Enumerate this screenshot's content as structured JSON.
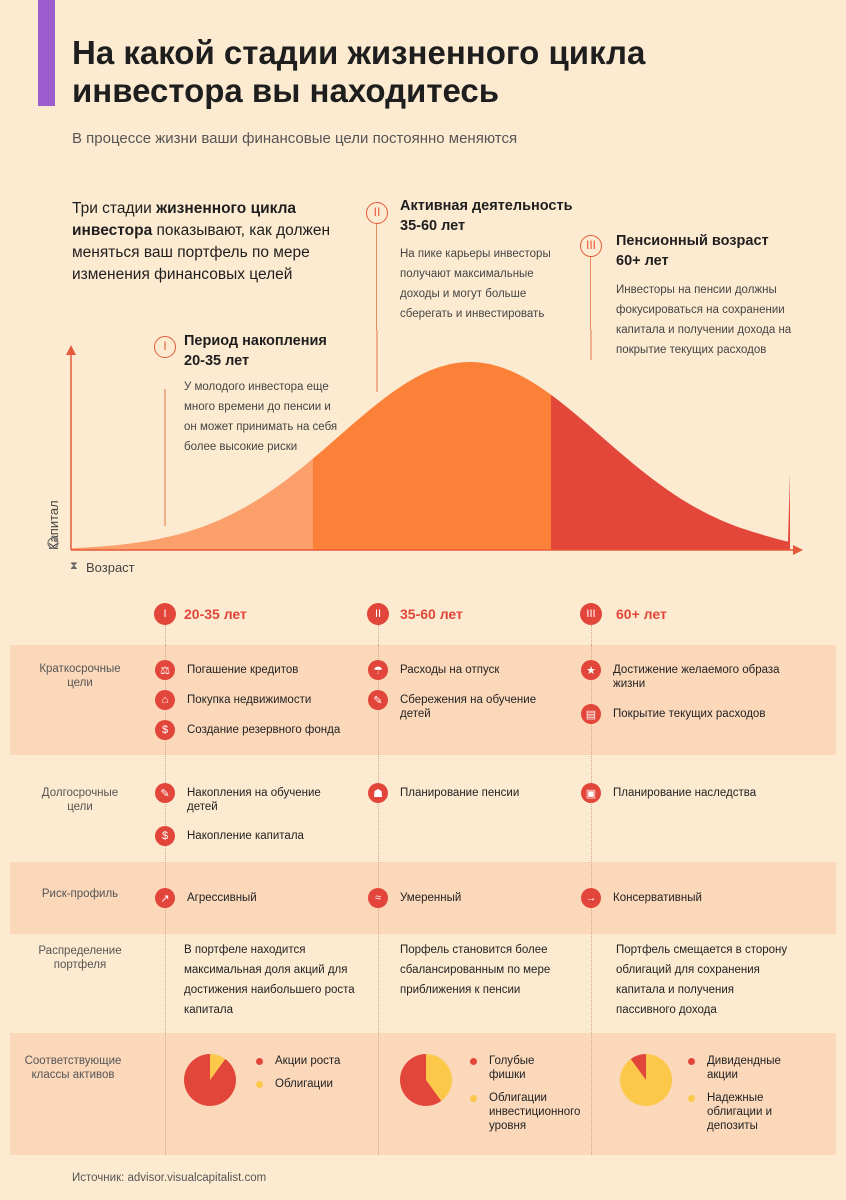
{
  "title": "На какой стадии жизненного цикла инвестора вы находитесь",
  "subtitle": "В процессе жизни ваши финансовые цели постоянно меняются",
  "intro": {
    "part1": "Три стадии ",
    "bold": "жизненного цикла инвестора",
    "part2": " показывают, как должен меняться ваш портфель по мере изменения финансовых целей"
  },
  "stages": [
    {
      "num": "I",
      "title": "Период накопления 20-35 лет",
      "desc": "У молодого инвестора еще много времени до пенсии и он может принимать на себя более высокие риски"
    },
    {
      "num": "II",
      "title": "Активная деятельность 35-60 лет",
      "desc": "На пике карьеры инвесторы получают максимальные доходы и могут больше сберегать и инвестировать"
    },
    {
      "num": "III",
      "title": "Пенсионный возраст 60+ лет",
      "desc": "Инвесторы на пенсии должны фокусироваться на сохранении капитала и получении дохода на покрытие текущих расходов"
    }
  ],
  "chart_data": {
    "type": "area",
    "title": "",
    "xlabel": "Возраст",
    "ylabel": "Капитал",
    "segments": [
      {
        "name": "Период накопления",
        "color": "#fba06a"
      },
      {
        "name": "Активная деятельность",
        "color": "#fb8038"
      },
      {
        "name": "Пенсионный возраст",
        "color": "#e3473a"
      }
    ]
  },
  "columns": [
    {
      "num": "I",
      "label": "20-35 лет"
    },
    {
      "num": "II",
      "label": "35-60 лет"
    },
    {
      "num": "III",
      "label": "60+ лет"
    }
  ],
  "rows": {
    "short_label": "Краткосрочные цели",
    "long_label": "Долгосрочные цели",
    "risk_label": "Риск-профиль",
    "dist_label": "Распределение портфеля",
    "assets_label": "Соответствующие классы активов"
  },
  "short_goals": [
    [
      "Погашение кредитов",
      "Покупка недвижимости",
      "Создание резервного фонда"
    ],
    [
      "Расходы на отпуск",
      "Сбережения на обучение детей"
    ],
    [
      "Достижение желаемого образа жизни",
      "Покрытие текущих расходов"
    ]
  ],
  "long_goals": [
    [
      "Накопления на обучение детей",
      "Накопление капитала"
    ],
    [
      "Планирование пенсии"
    ],
    [
      "Планирование наследства"
    ]
  ],
  "risk": [
    "Агрессивный",
    "Умеренный",
    "Консервативный"
  ],
  "distribution": [
    "В портфеле находится максимальная доля акций для достижения наибольшего роста капитала",
    "Порфель становится более сбалансированным по мере приближения к пенсии",
    "Портфель смещается в сторону облигаций для сохранения капитала и получения пассивного дохода"
  ],
  "assets": [
    {
      "pie": [
        {
          "name": "Акции роста",
          "value": 0.9,
          "color": "#e2463a"
        },
        {
          "name": "Облигации",
          "value": 0.1,
          "color": "#fbc84a"
        }
      ]
    },
    {
      "pie": [
        {
          "name": "Голубые фишки",
          "value": 0.6,
          "color": "#e2463a"
        },
        {
          "name": "Облигации инвестиционного уровня",
          "value": 0.4,
          "color": "#fbc84a"
        }
      ]
    },
    {
      "pie": [
        {
          "name": "Дивидендные акции",
          "value": 0.1,
          "color": "#e2463a"
        },
        {
          "name": "Надежные облигации и депозиты",
          "value": 0.9,
          "color": "#fbc84a"
        }
      ]
    }
  ],
  "source": "Источник: advisor.visualcapitalist.com"
}
